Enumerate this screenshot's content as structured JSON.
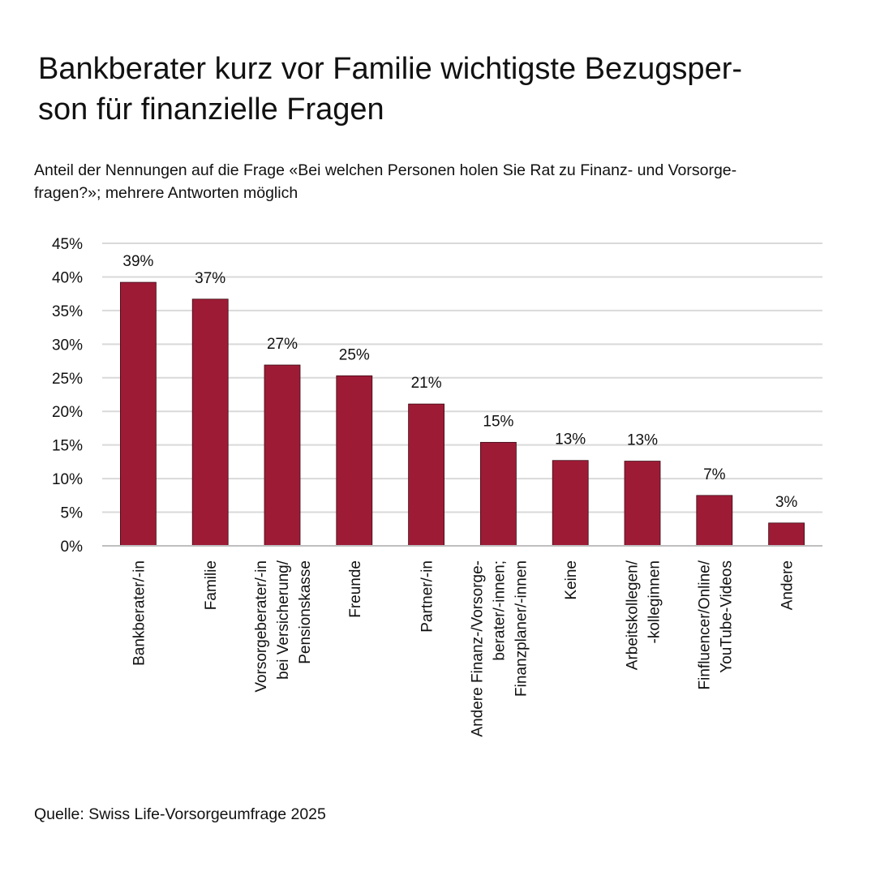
{
  "title_lines": [
    "Bankberater kurz vor Familie wichtigste Bezugsper-",
    "son für finanzielle Fragen"
  ],
  "subtitle_lines": [
    "Anteil der Nennungen auf die Frage «Bei welchen Personen holen Sie Rat zu Finanz- und Vorsorge-",
    "fragen?»; mehrere Antworten möglich"
  ],
  "source": "Quelle: Swiss Life-Vorsorgeumfrage 2025",
  "colors": {
    "bar": "#9e1b36",
    "grid": "#d9d9d9",
    "axis": "#bfbfbf"
  },
  "chart_data": {
    "type": "bar",
    "categories": [
      [
        "Bankberater/-in"
      ],
      [
        "Familie"
      ],
      [
        "Vorsorgeberater/-in",
        "bei Versicherung/",
        "Pensionskasse"
      ],
      [
        "Freunde"
      ],
      [
        "Partner/-in"
      ],
      [
        "Andere Finanz-/Vorsorge-",
        "berater/-innen;",
        "Finanzplaner/-innen"
      ],
      [
        "Keine"
      ],
      [
        "Arbeitskollegen/",
        "-kolleginnen"
      ],
      [
        "Finfluencer/Online/",
        "YouTube-Videos"
      ],
      [
        "Andere"
      ]
    ],
    "values": [
      39.2,
      36.7,
      26.9,
      25.3,
      21.1,
      15.4,
      12.7,
      12.6,
      7.5,
      3.4
    ],
    "data_labels": [
      "39%",
      "37%",
      "27%",
      "25%",
      "21%",
      "15%",
      "13%",
      "13%",
      "7%",
      "3%"
    ],
    "ylim": [
      0,
      45
    ],
    "yticks": [
      0,
      5,
      10,
      15,
      20,
      25,
      30,
      35,
      40,
      45
    ],
    "ytick_labels": [
      "0%",
      "5%",
      "10%",
      "15%",
      "20%",
      "25%",
      "30%",
      "35%",
      "40%",
      "45%"
    ],
    "grid": true,
    "legend": "none"
  }
}
